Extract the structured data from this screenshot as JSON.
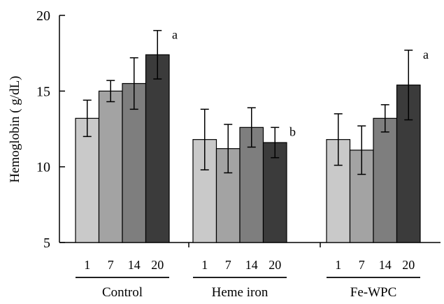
{
  "chart_data": {
    "type": "bar",
    "ylabel": "Hemoglobin ( g/dL)",
    "ylim": [
      5,
      20
    ],
    "yticks": [
      "5",
      "10",
      "15",
      "20"
    ],
    "groups": [
      {
        "name": "Control",
        "categories": [
          "1",
          "7",
          "14",
          "20"
        ],
        "values": [
          13.2,
          15.0,
          15.5,
          17.4
        ],
        "errors": [
          1.2,
          0.7,
          1.7,
          1.6
        ],
        "annotation": "a"
      },
      {
        "name": "Heme iron",
        "categories": [
          "1",
          "7",
          "14",
          "20"
        ],
        "values": [
          11.8,
          11.2,
          12.6,
          11.6
        ],
        "errors": [
          2.0,
          1.6,
          1.3,
          1.0
        ],
        "annotation": "b"
      },
      {
        "name": "Fe-WPC",
        "categories": [
          "1",
          "7",
          "14",
          "20"
        ],
        "values": [
          11.8,
          11.1,
          13.2,
          15.4
        ],
        "errors": [
          1.7,
          1.6,
          0.9,
          2.3
        ],
        "annotation": "a"
      }
    ],
    "bar_colors": [
      "#c9c9c9",
      "#a3a3a3",
      "#7e7e7e",
      "#3b3b3b"
    ],
    "grid": false,
    "legend": "none"
  }
}
